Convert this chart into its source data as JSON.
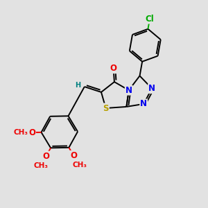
{
  "bg_color": "#e2e2e2",
  "bond_color": "#000000",
  "S_color": "#b8a000",
  "N_color": "#0000ee",
  "O_color": "#ee0000",
  "Cl_color": "#00aa00",
  "H_color": "#008080",
  "font_size": 8.5,
  "lw": 1.4,
  "fig_w": 3.0,
  "fig_h": 3.0,
  "dpi": 100,
  "xlim": [
    0,
    10
  ],
  "ylim": [
    0,
    10
  ]
}
